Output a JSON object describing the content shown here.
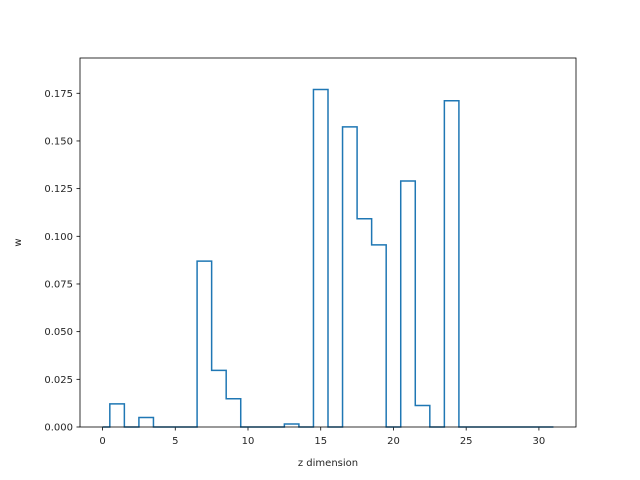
{
  "chart_data": {
    "type": "step",
    "xlabel": "z dimension",
    "ylabel": "w",
    "xlim": [
      -1.55,
      32.55
    ],
    "ylim": [
      0,
      0.1935
    ],
    "x_ticks": [
      0,
      5,
      10,
      15,
      20,
      25,
      30
    ],
    "y_ticks": [
      0.0,
      0.025,
      0.05,
      0.075,
      0.1,
      0.125,
      0.15,
      0.175
    ],
    "y_tick_labels": [
      "0.000",
      "0.025",
      "0.050",
      "0.075",
      "0.100",
      "0.125",
      "0.150",
      "0.175"
    ],
    "x_tick_labels": [
      "0",
      "5",
      "10",
      "15",
      "20",
      "25",
      "30"
    ],
    "line_color": "#1f77b4",
    "step_where": "mid",
    "x": [
      0,
      1,
      2,
      3,
      4,
      5,
      6,
      7,
      8,
      9,
      10,
      11,
      12,
      13,
      14,
      15,
      16,
      17,
      18,
      19,
      20,
      21,
      22,
      23,
      24,
      25,
      26,
      27,
      28,
      29,
      30,
      31
    ],
    "values": [
      0.0,
      0.0121,
      0.0,
      0.005,
      0.0,
      0.0,
      0.0,
      0.087,
      0.0297,
      0.0148,
      0.0,
      0.0,
      0.0,
      0.0016,
      0.0,
      0.177,
      0.0,
      0.1574,
      0.1092,
      0.0955,
      0.0,
      0.129,
      0.0113,
      0.0,
      0.1711,
      0.0,
      0.0,
      0.0,
      0.0,
      0.0,
      0.0,
      0.0
    ]
  }
}
